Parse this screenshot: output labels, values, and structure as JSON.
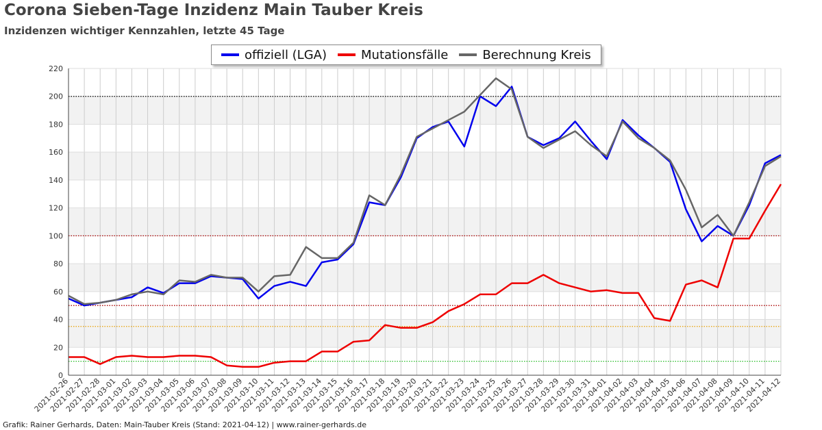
{
  "title": "Corona Sieben-Tage Inzidenz Main Tauber Kreis",
  "subtitle": "Inzidenzen wichtiger Kennzahlen, letzte 45 Tage",
  "footer": "Grafik: Rainer Gerhards, Daten: Main-Tauber Kreis (Stand: 2021-04-12) | www.rainer-gerhards.de",
  "chart_data": {
    "type": "line",
    "ylim": [
      0,
      220
    ],
    "y_ticks": [
      0,
      20,
      40,
      60,
      80,
      100,
      120,
      140,
      160,
      180,
      200,
      220
    ],
    "grid": true,
    "legend_position": "top-center",
    "categories": [
      "2021-02-26",
      "2021-02-27",
      "2021-02-28",
      "2021-03-01",
      "2021-03-02",
      "2021-03-03",
      "2021-03-04",
      "2021-03-05",
      "2021-03-06",
      "2021-03-07",
      "2021-03-08",
      "2021-03-09",
      "2021-03-10",
      "2021-03-11",
      "2021-03-12",
      "2021-03-13",
      "2021-03-14",
      "2021-03-15",
      "2021-03-16",
      "2021-03-17",
      "2021-03-18",
      "2021-03-19",
      "2021-03-20",
      "2021-03-21",
      "2021-03-22",
      "2021-03-23",
      "2021-03-24",
      "2021-03-25",
      "2021-03-26",
      "2021-03-27",
      "2021-03-28",
      "2021-03-29",
      "2021-03-30",
      "2021-03-31",
      "2021-04-01",
      "2021-04-02",
      "2021-04-03",
      "2021-04-04",
      "2021-04-05",
      "2021-04-06",
      "2021-04-07",
      "2021-04-08",
      "2021-04-09",
      "2021-04-10",
      "2021-04-11",
      "2021-04-12"
    ],
    "reference_lines": [
      {
        "value": 200,
        "color": "#000000"
      },
      {
        "value": 100,
        "color": "#aa0000"
      },
      {
        "value": 50,
        "color": "#aa0000"
      },
      {
        "value": 35,
        "color": "#e8a000"
      },
      {
        "value": 10,
        "color": "#22bb22"
      }
    ],
    "series": [
      {
        "name": "offiziell (LGA)",
        "color": "#0000ee",
        "values": [
          55,
          50,
          52,
          54,
          56,
          63,
          59,
          66,
          66,
          71,
          70,
          69,
          55,
          64,
          67,
          64,
          81,
          83,
          94,
          124,
          122,
          142,
          170,
          178,
          182,
          164,
          200,
          193,
          207,
          171,
          165,
          170,
          182,
          168,
          155,
          183,
          172,
          163,
          153,
          119,
          96,
          107,
          100,
          122,
          152,
          158
        ]
      },
      {
        "value_note": null,
        "name": "Mutationsfälle",
        "color": "#ee0000",
        "values": [
          13,
          13,
          8,
          13,
          14,
          13,
          13,
          14,
          14,
          13,
          7,
          6,
          6,
          9,
          10,
          10,
          17,
          17,
          24,
          25,
          36,
          34,
          34,
          38,
          46,
          51,
          58,
          58,
          66,
          66,
          72,
          66,
          63,
          60,
          61,
          59,
          59,
          41,
          39,
          65,
          68,
          63,
          98,
          98,
          118,
          137
        ]
      },
      {
        "name": "Berechnung Kreis",
        "color": "#666666",
        "values": [
          57,
          51,
          52,
          54,
          58,
          60,
          58,
          68,
          67,
          72,
          70,
          70,
          60,
          71,
          72,
          92,
          84,
          84,
          95,
          129,
          122,
          144,
          171,
          177,
          183,
          189,
          201,
          213,
          205,
          171,
          163,
          169,
          175,
          165,
          157,
          182,
          170,
          163,
          154,
          133,
          106,
          115,
          100,
          124,
          150,
          157
        ]
      }
    ]
  }
}
